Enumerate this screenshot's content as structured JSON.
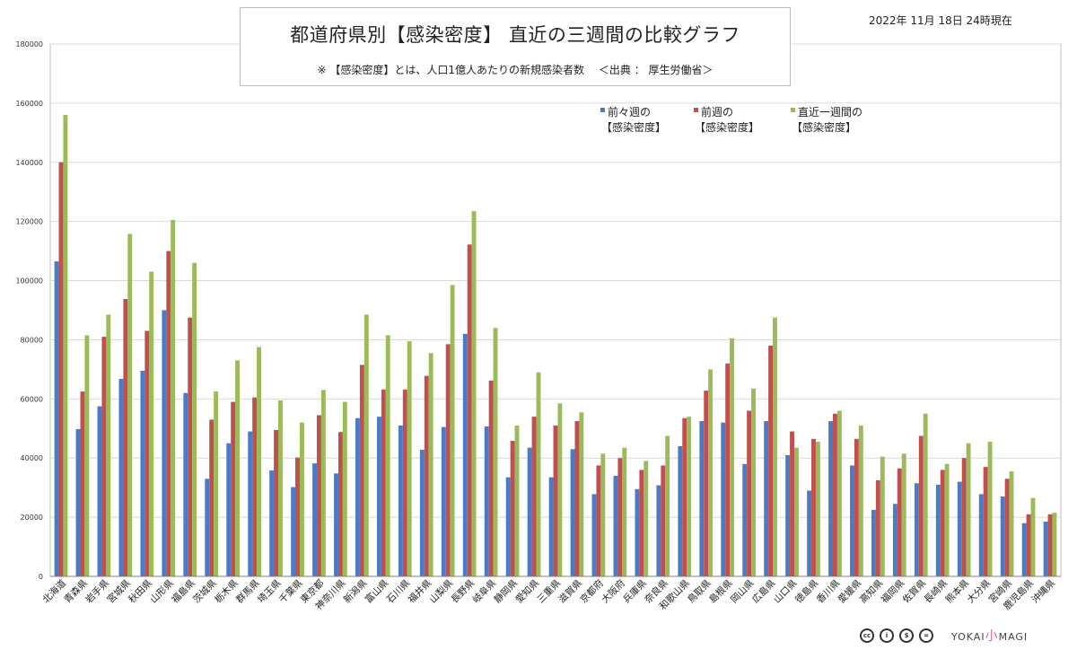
{
  "chart_data": {
    "type": "bar",
    "title": "都道府県別【感染密度】 直近の三週間の比較グラフ",
    "subtitle": "※ 【感染密度】とは、人口1億人あたりの新規感染者数　 ＜出典 ： 厚生労働省＞",
    "date_label": "2022年 11月 18日 24時現在",
    "ylim": [
      0,
      180000
    ],
    "yticks": [
      "0",
      "20000",
      "40000",
      "60000",
      "80000",
      "100000",
      "120000",
      "140000",
      "160000",
      "180000"
    ],
    "grid": true,
    "legend_position": "top-right",
    "categories": [
      "北海道",
      "青森県",
      "岩手県",
      "宮城県",
      "秋田県",
      "山形県",
      "福島県",
      "茨城県",
      "栃木県",
      "群馬県",
      "埼玉県",
      "千葉県",
      "東京都",
      "神奈川県",
      "新潟県",
      "富山県",
      "石川県",
      "福井県",
      "山梨県",
      "長野県",
      "岐阜県",
      "静岡県",
      "愛知県",
      "三重県",
      "滋賀県",
      "京都府",
      "大阪府",
      "兵庫県",
      "奈良県",
      "和歌山県",
      "鳥取県",
      "島根県",
      "岡山県",
      "広島県",
      "山口県",
      "徳島県",
      "香川県",
      "愛媛県",
      "高知県",
      "福岡県",
      "佐賀県",
      "長崎県",
      "熊本県",
      "大分県",
      "宮崎県",
      "鹿児島県",
      "沖縄県"
    ],
    "series": [
      {
        "name": "前々週の 【感染密度】",
        "legend_lines": [
          "前々週の",
          "【感染密度】"
        ],
        "color": "#4a7bc8",
        "values": [
          106500,
          49800,
          57500,
          66800,
          69500,
          90000,
          62000,
          33000,
          45000,
          49000,
          35800,
          30200,
          38200,
          34800,
          53500,
          54000,
          51000,
          42800,
          50500,
          82000,
          50700,
          33500,
          43500,
          33500,
          43000,
          27800,
          34000,
          29500,
          30800,
          44000,
          52500,
          52000,
          38000,
          52500,
          41000,
          29000,
          52500,
          37500,
          22500,
          24500,
          31500,
          31000,
          32000,
          27800,
          27000,
          18000,
          18500
        ]
      },
      {
        "name": "前週の 【感染密度】",
        "legend_lines": [
          "前週の",
          "【感染密度】"
        ],
        "color": "#c0504d",
        "values": [
          140000,
          62500,
          81000,
          93800,
          83000,
          110000,
          87500,
          53000,
          59000,
          60500,
          49500,
          40200,
          54500,
          48800,
          71500,
          63200,
          63200,
          67800,
          78500,
          112200,
          66200,
          45800,
          54000,
          51000,
          52500,
          37500,
          40000,
          36000,
          37500,
          53500,
          62800,
          72000,
          56000,
          78000,
          49000,
          46500,
          55000,
          46500,
          32500,
          36500,
          47500,
          36000,
          40000,
          37000,
          33000,
          21000,
          21000
        ]
      },
      {
        "name": "直近一週間の 【感染密度】",
        "legend_lines": [
          "直近一週間の",
          "【感染密度】"
        ],
        "color": "#9bbb59",
        "values": [
          156000,
          81500,
          88500,
          115800,
          103000,
          120500,
          106000,
          62500,
          73000,
          77500,
          59500,
          52000,
          63000,
          59000,
          88500,
          81500,
          79500,
          75500,
          98500,
          123500,
          84000,
          51000,
          69000,
          58500,
          55500,
          41500,
          43500,
          39000,
          47500,
          54000,
          70000,
          80500,
          63500,
          87500,
          43500,
          45500,
          56000,
          51000,
          40500,
          41500,
          55000,
          38000,
          45000,
          45500,
          35500,
          26500,
          21500
        ]
      }
    ]
  },
  "footer": {
    "brand_left": "YOKAI",
    "brand_mid": "小",
    "brand_right": "MAGI",
    "license_icons": [
      "cc-icon",
      "by-icon",
      "nc-icon",
      "nd-icon"
    ]
  }
}
